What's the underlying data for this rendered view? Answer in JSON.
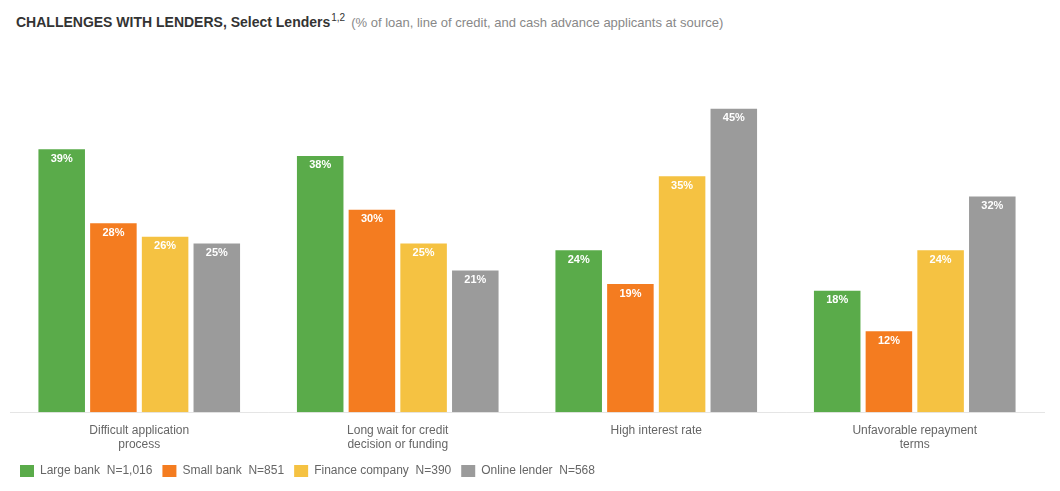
{
  "chart_data": {
    "type": "bar",
    "title": "CHALLENGES WITH LENDERS, Select Lenders",
    "annotations": [
      "1,2"
    ],
    "subtitle": "(% of loan, line of credit, and cash advance applicants at source)",
    "categories": [
      "Difficult application\nprocess",
      "Long wait for credit\ndecision or funding",
      "High interest rate",
      "Unfavorable repayment\nterms"
    ],
    "series": [
      {
        "name": "Large bank  N=1,016",
        "color": "#5aab4a",
        "values": [
          39,
          38,
          24,
          18
        ],
        "value_labels": [
          "39%",
          "38%",
          "24%",
          "18%"
        ]
      },
      {
        "name": "Small bank  N=851",
        "color": "#f47c20",
        "values": [
          28,
          30,
          19,
          12
        ],
        "value_labels": [
          "28%",
          "30%",
          "19%",
          "12%"
        ]
      },
      {
        "name": "Finance company  N=390",
        "color": "#f5c242",
        "values": [
          26,
          25,
          35,
          24
        ],
        "value_labels": [
          "26%",
          "25%",
          "35%",
          "24%"
        ]
      },
      {
        "name": "Online lender  N=568",
        "color": "#9b9b9b",
        "values": [
          25,
          21,
          45,
          32
        ],
        "value_labels": [
          "25%",
          "21%",
          "45%",
          "32%"
        ]
      }
    ],
    "ylim": [
      0,
      54
    ],
    "grid": false,
    "legend": "bottom",
    "data_labels": true,
    "tick_labels": "x"
  }
}
